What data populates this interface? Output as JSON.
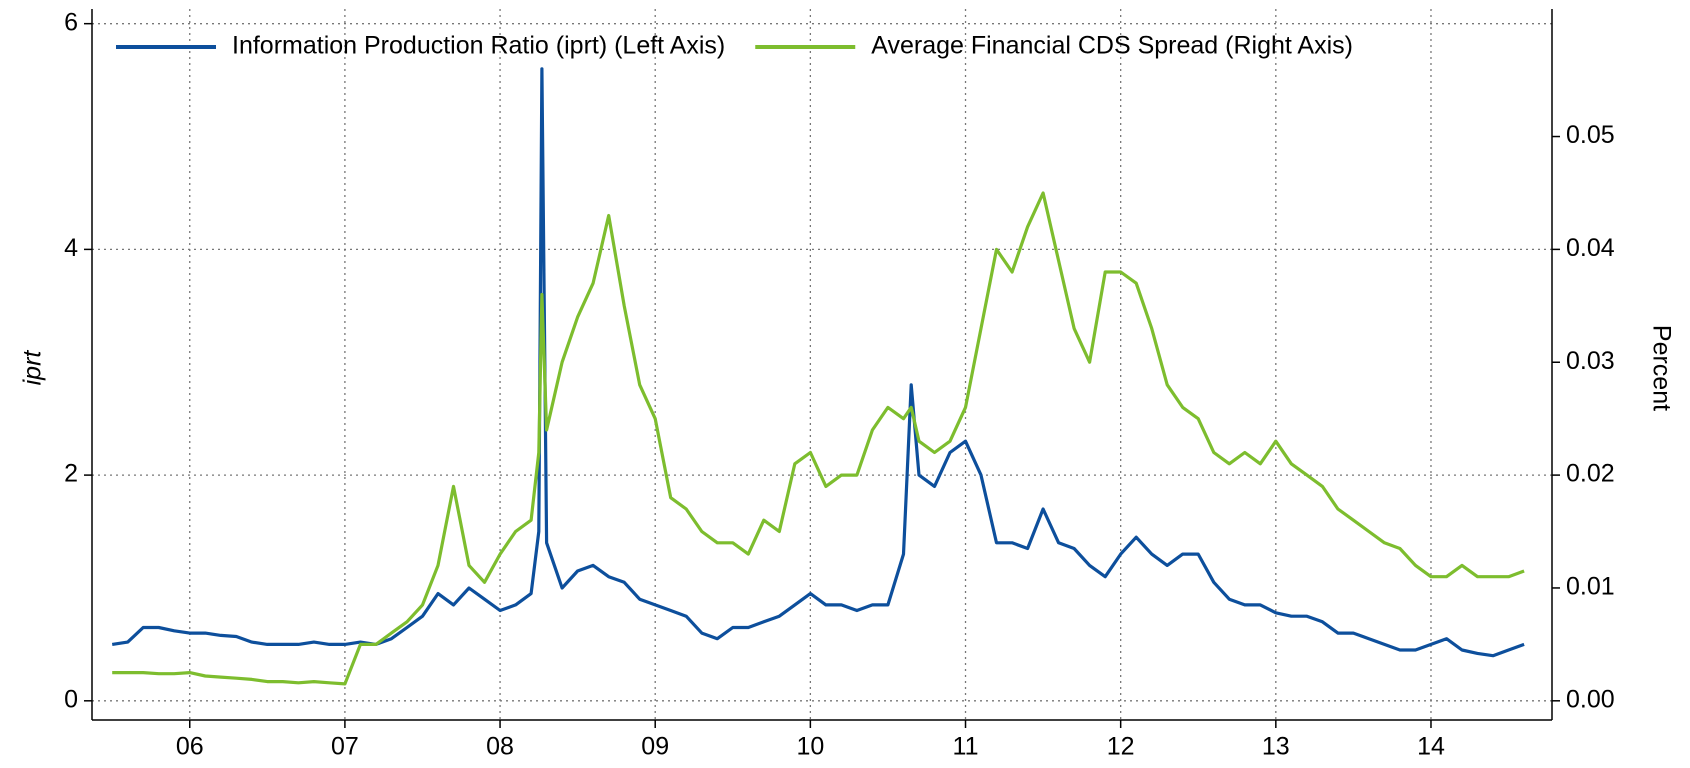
{
  "chart_data": {
    "type": "line",
    "ylabel": "iprt",
    "y2label": "Percent",
    "x": [
      5.5,
      5.6,
      5.7,
      5.8,
      5.9,
      6.0,
      6.1,
      6.2,
      6.3,
      6.4,
      6.5,
      6.6,
      6.7,
      6.8,
      6.9,
      7.0,
      7.1,
      7.2,
      7.3,
      7.4,
      7.5,
      7.6,
      7.7,
      7.8,
      7.9,
      8.0,
      8.1,
      8.2,
      8.25,
      8.27,
      8.3,
      8.4,
      8.5,
      8.6,
      8.7,
      8.8,
      8.9,
      9.0,
      9.1,
      9.2,
      9.3,
      9.4,
      9.5,
      9.6,
      9.7,
      9.8,
      9.9,
      10.0,
      10.1,
      10.2,
      10.3,
      10.4,
      10.5,
      10.6,
      10.65,
      10.7,
      10.8,
      10.9,
      11.0,
      11.1,
      11.2,
      11.3,
      11.4,
      11.5,
      11.6,
      11.7,
      11.8,
      11.9,
      12.0,
      12.1,
      12.2,
      12.3,
      12.4,
      12.5,
      12.6,
      12.7,
      12.8,
      12.9,
      13.0,
      13.1,
      13.2,
      13.3,
      13.4,
      13.5,
      13.6,
      13.7,
      13.8,
      13.9,
      14.0,
      14.1,
      14.2,
      14.3,
      14.4,
      14.5,
      14.6
    ],
    "series": [
      {
        "name": "Information Production Ratio (iprt) (Left Axis)",
        "color": "#0d4f9c",
        "axis": "y",
        "values": [
          0.5,
          0.52,
          0.65,
          0.65,
          0.62,
          0.6,
          0.6,
          0.58,
          0.57,
          0.52,
          0.5,
          0.5,
          0.5,
          0.52,
          0.5,
          0.5,
          0.52,
          0.5,
          0.55,
          0.65,
          0.75,
          0.95,
          0.85,
          1.0,
          0.9,
          0.8,
          0.85,
          0.95,
          1.5,
          5.6,
          1.4,
          1.0,
          1.15,
          1.2,
          1.1,
          1.05,
          0.9,
          0.85,
          0.8,
          0.75,
          0.6,
          0.55,
          0.65,
          0.65,
          0.7,
          0.75,
          0.85,
          0.95,
          0.85,
          0.85,
          0.8,
          0.85,
          0.85,
          1.3,
          2.8,
          2.0,
          1.9,
          2.2,
          2.3,
          2.0,
          1.4,
          1.4,
          1.35,
          1.7,
          1.4,
          1.35,
          1.2,
          1.1,
          1.3,
          1.45,
          1.3,
          1.2,
          1.3,
          1.3,
          1.05,
          0.9,
          0.85,
          0.85,
          0.78,
          0.75,
          0.75,
          0.7,
          0.6,
          0.6,
          0.55,
          0.5,
          0.45,
          0.45,
          0.5,
          0.55,
          0.45,
          0.42,
          0.4,
          0.45,
          0.5
        ]
      },
      {
        "name": "Average Financial CDS Spread (Right Axis)",
        "color": "#7dbd2e",
        "axis": "y2",
        "values": [
          0.0025,
          0.0025,
          0.0025,
          0.0024,
          0.0024,
          0.0025,
          0.0022,
          0.0021,
          0.002,
          0.0019,
          0.0017,
          0.0017,
          0.0016,
          0.0017,
          0.0016,
          0.0015,
          0.005,
          0.005,
          0.006,
          0.007,
          0.0085,
          0.012,
          0.019,
          0.012,
          0.0105,
          0.013,
          0.015,
          0.016,
          0.022,
          0.036,
          0.024,
          0.03,
          0.034,
          0.037,
          0.043,
          0.035,
          0.028,
          0.025,
          0.018,
          0.017,
          0.015,
          0.014,
          0.014,
          0.013,
          0.016,
          0.015,
          0.021,
          0.022,
          0.019,
          0.02,
          0.02,
          0.024,
          0.026,
          0.025,
          0.026,
          0.023,
          0.022,
          0.023,
          0.026,
          0.033,
          0.04,
          0.038,
          0.042,
          0.045,
          0.039,
          0.033,
          0.03,
          0.038,
          0.038,
          0.037,
          0.033,
          0.028,
          0.026,
          0.025,
          0.022,
          0.021,
          0.022,
          0.021,
          0.023,
          0.021,
          0.02,
          0.019,
          0.017,
          0.016,
          0.015,
          0.014,
          0.0135,
          0.012,
          0.011,
          0.011,
          0.012,
          0.011,
          0.011,
          0.011,
          0.0115
        ]
      }
    ],
    "xlim": [
      5.37,
      14.78
    ],
    "xticks": [
      {
        "value": 6,
        "label": "06"
      },
      {
        "value": 7,
        "label": "07"
      },
      {
        "value": 8,
        "label": "08"
      },
      {
        "value": 9,
        "label": "09"
      },
      10,
      11,
      12,
      13,
      14
    ],
    "ylim": [
      -0.17,
      6.13
    ],
    "yticks": [
      0,
      2,
      4,
      6
    ],
    "y2lim": [
      -0.0017,
      0.0613
    ],
    "y2ticks": [
      {
        "value": 0,
        "label": "0.00"
      },
      {
        "value": 0.01,
        "label": "0.01"
      },
      {
        "value": 0.02,
        "label": "0.02"
      },
      {
        "value": 0.03,
        "label": "0.03"
      },
      {
        "value": 0.04,
        "label": "0.04"
      },
      {
        "value": 0.05,
        "label": "0.05"
      }
    ],
    "grid": true,
    "legend": "top-left"
  }
}
